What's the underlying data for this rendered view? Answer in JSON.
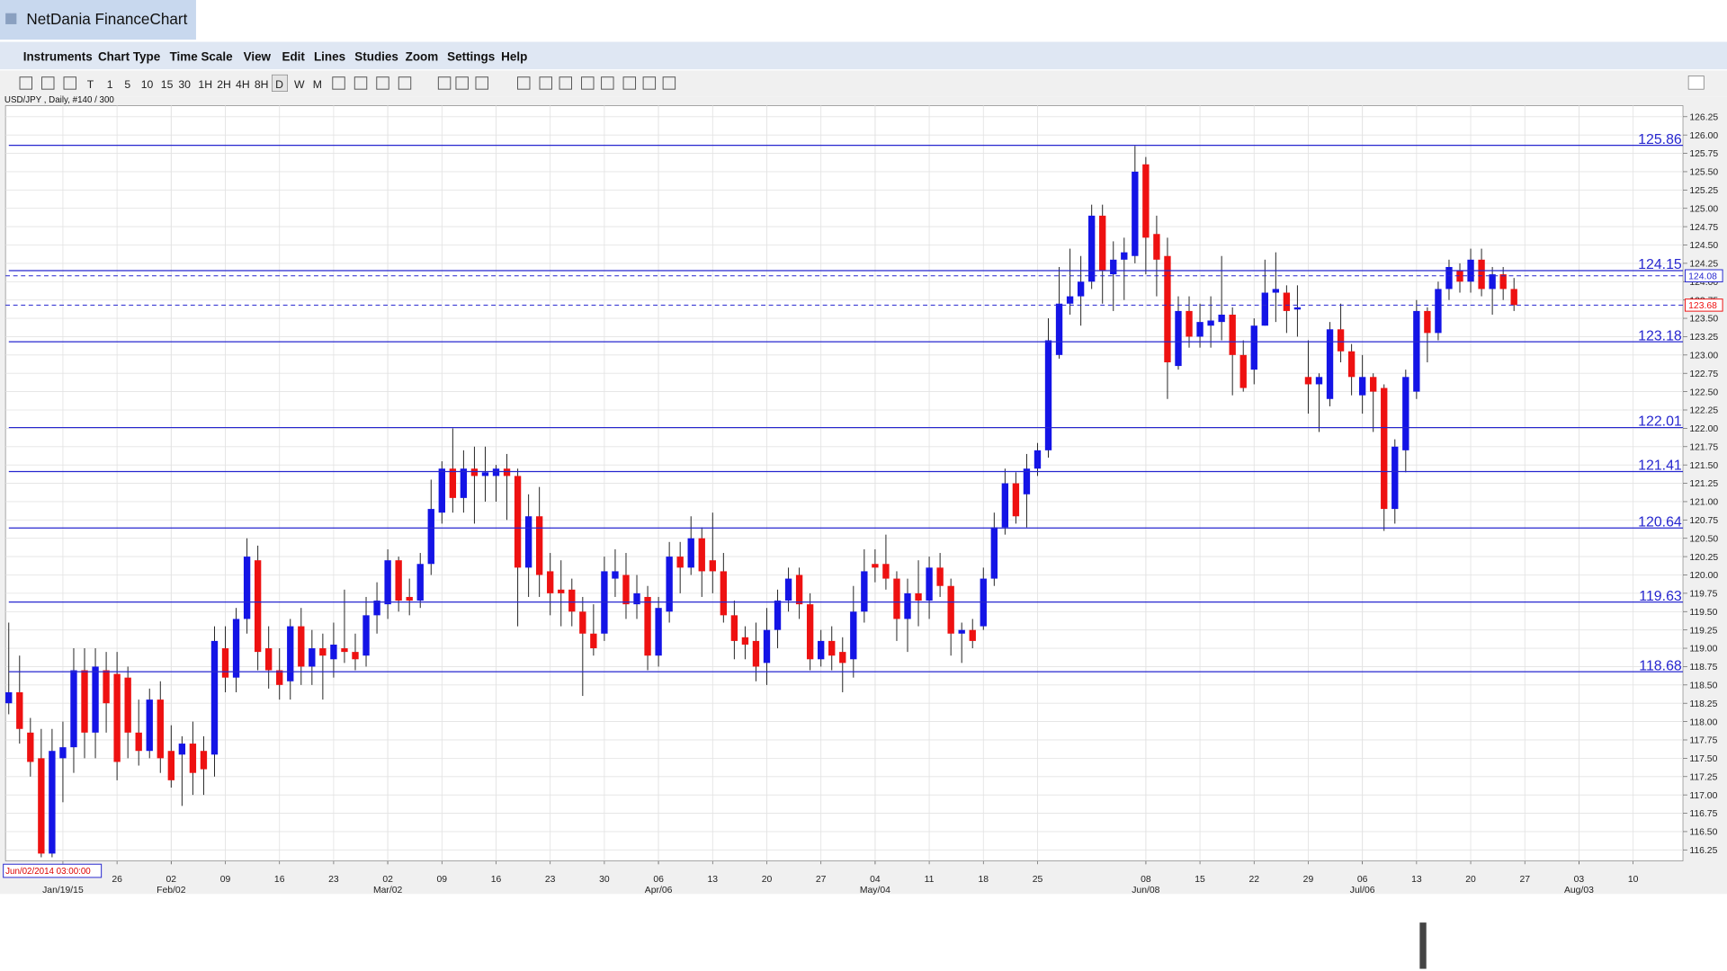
{
  "window": {
    "title": "NetDania FinanceChart"
  },
  "menu": [
    "Instruments",
    "Chart Type",
    "Time Scale",
    "View",
    "Edit",
    "Lines",
    "Studies",
    "Zoom",
    "Settings",
    "Help"
  ],
  "toolbar": [
    "T",
    "1",
    "5",
    "10",
    "15",
    "30",
    "1H",
    "2H",
    "4H",
    "8H",
    "D",
    "W",
    "M"
  ],
  "chart_data": {
    "type": "candlestick",
    "title": "USD/JPY , Daily, #140 / 300",
    "cursor_label": "Jun/02/2014 03:00:00",
    "up_color": "#1414e6",
    "down_color": "#ee1111",
    "open": [
      118.25,
      118.4,
      117.85,
      117.5,
      116.2,
      117.5,
      117.65,
      118.7,
      117.85,
      118.7,
      118.65,
      118.6,
      117.85,
      117.6,
      118.3,
      117.6,
      117.55,
      117.7,
      117.6,
      117.55,
      119.0,
      118.6,
      119.4,
      120.2,
      119.0,
      118.7,
      118.55,
      119.3,
      118.75,
      119.0,
      118.85,
      119.0,
      118.95,
      118.9,
      119.45,
      119.6,
      120.2,
      119.7,
      119.65,
      120.15,
      120.85,
      121.45,
      121.05,
      121.45,
      121.35,
      121.35,
      121.45,
      121.35,
      120.1,
      120.8,
      120.05,
      119.8,
      119.8,
      119.5,
      119.2,
      119.2,
      119.95,
      120.0,
      119.6,
      119.7,
      118.9,
      119.5,
      120.25,
      120.1,
      120.5,
      120.2,
      120.05,
      119.45,
      119.15,
      119.1,
      118.8,
      119.25,
      119.65,
      120.0,
      119.6,
      118.85,
      119.1,
      118.95,
      118.85,
      119.5,
      120.15,
      120.15,
      119.95,
      119.4,
      119.75,
      119.65,
      120.1,
      119.85,
      119.2,
      119.25,
      119.3,
      119.95,
      120.65,
      121.25,
      121.1,
      121.45,
      121.7,
      123.0,
      123.7,
      123.8,
      124.0,
      124.9,
      124.1,
      124.3,
      124.35,
      125.6,
      124.65,
      124.35,
      122.85,
      123.6,
      123.25,
      123.4,
      123.45,
      123.55,
      123.0,
      122.8,
      123.4,
      123.85,
      123.85,
      123.62,
      122.7,
      122.6,
      122.4,
      123.35,
      123.05,
      122.45,
      122.7,
      122.55,
      120.9,
      121.7,
      122.5,
      123.6,
      123.3,
      123.9,
      124.15,
      124.0,
      124.3,
      123.9,
      124.1,
      123.9
    ],
    "high": [
      119.35,
      118.9,
      118.05,
      117.9,
      117.9,
      118.0,
      119.0,
      119.0,
      119.0,
      118.95,
      118.95,
      118.75,
      118.3,
      118.45,
      118.55,
      117.95,
      117.8,
      118.0,
      117.8,
      119.3,
      119.3,
      119.55,
      120.5,
      120.4,
      119.3,
      119.0,
      119.4,
      119.55,
      119.25,
      119.2,
      119.35,
      119.8,
      119.2,
      119.7,
      119.9,
      120.35,
      120.25,
      119.95,
      120.3,
      121.3,
      121.55,
      122.0,
      121.7,
      121.75,
      121.75,
      121.5,
      121.65,
      121.45,
      121.1,
      121.2,
      120.3,
      120.2,
      119.95,
      119.7,
      119.6,
      120.25,
      120.35,
      120.3,
      120.0,
      119.85,
      119.7,
      120.45,
      120.45,
      120.8,
      120.65,
      120.85,
      120.3,
      119.65,
      119.3,
      119.35,
      119.55,
      119.8,
      120.1,
      120.1,
      119.75,
      119.25,
      119.3,
      119.15,
      119.85,
      120.35,
      120.35,
      120.55,
      120.05,
      119.95,
      120.2,
      120.25,
      120.3,
      119.95,
      119.35,
      119.4,
      120.1,
      120.85,
      121.45,
      121.4,
      121.65,
      121.8,
      123.5,
      124.2,
      124.45,
      124.35,
      125.05,
      125.05,
      124.55,
      124.6,
      125.85,
      125.7,
      124.9,
      124.6,
      123.8,
      123.8,
      123.7,
      123.8,
      124.35,
      123.65,
      123.2,
      123.5,
      124.3,
      124.4,
      123.95,
      123.95,
      123.2,
      122.75,
      123.45,
      123.7,
      123.15,
      123.0,
      122.75,
      122.6,
      121.85,
      122.8,
      123.75,
      123.65,
      124.0,
      124.3,
      124.25,
      124.45,
      124.45,
      124.2,
      124.2,
      124.05
    ],
    "low": [
      118.1,
      117.7,
      117.25,
      116.15,
      116.15,
      116.9,
      117.3,
      117.5,
      117.5,
      117.85,
      117.2,
      117.5,
      117.4,
      117.5,
      117.3,
      117.1,
      116.85,
      117.0,
      117.0,
      117.25,
      118.4,
      118.4,
      119.2,
      118.7,
      118.45,
      118.3,
      118.3,
      118.5,
      118.5,
      118.3,
      118.6,
      118.8,
      118.7,
      118.75,
      119.2,
      119.4,
      119.5,
      119.45,
      119.55,
      120.0,
      120.7,
      120.85,
      120.85,
      120.7,
      121.0,
      121.0,
      120.75,
      119.3,
      119.7,
      119.7,
      119.45,
      119.3,
      119.3,
      118.35,
      118.9,
      119.1,
      119.7,
      119.4,
      119.4,
      118.7,
      118.75,
      119.35,
      119.75,
      120.0,
      119.7,
      119.75,
      119.35,
      118.85,
      118.85,
      118.55,
      118.5,
      119.0,
      119.5,
      119.4,
      118.7,
      118.75,
      118.7,
      118.4,
      118.6,
      119.35,
      119.9,
      119.8,
      119.1,
      118.95,
      119.3,
      119.4,
      119.7,
      118.9,
      118.8,
      119.0,
      119.25,
      119.85,
      120.55,
      120.7,
      120.65,
      121.35,
      121.6,
      122.95,
      123.55,
      123.4,
      123.9,
      123.7,
      123.6,
      123.75,
      124.25,
      124.1,
      123.8,
      122.4,
      122.8,
      123.1,
      123.1,
      123.1,
      123.2,
      122.45,
      122.5,
      122.6,
      123.4,
      123.45,
      123.3,
      123.25,
      122.2,
      121.95,
      122.3,
      122.9,
      122.45,
      122.2,
      121.95,
      120.6,
      120.7,
      121.4,
      122.4,
      122.9,
      123.2,
      123.75,
      123.85,
      123.85,
      123.8,
      123.55,
      123.75,
      123.6
    ],
    "close": [
      118.4,
      117.9,
      117.45,
      116.2,
      117.6,
      117.65,
      118.7,
      117.85,
      118.75,
      118.25,
      117.45,
      117.85,
      117.6,
      118.3,
      117.5,
      117.2,
      117.7,
      117.3,
      117.35,
      119.1,
      118.6,
      119.4,
      120.25,
      118.95,
      118.7,
      118.5,
      119.3,
      118.75,
      119.0,
      118.9,
      119.05,
      118.95,
      118.85,
      119.45,
      119.65,
      120.2,
      119.65,
      119.65,
      120.15,
      120.9,
      121.45,
      121.05,
      121.45,
      121.35,
      121.4,
      121.45,
      121.35,
      120.1,
      120.8,
      120.0,
      119.75,
      119.75,
      119.5,
      119.2,
      119.0,
      120.05,
      120.05,
      119.6,
      119.75,
      118.9,
      119.55,
      120.25,
      120.1,
      120.5,
      120.05,
      120.05,
      119.45,
      119.1,
      119.05,
      118.75,
      119.25,
      119.65,
      119.95,
      119.6,
      118.85,
      119.1,
      118.9,
      118.8,
      119.5,
      120.05,
      120.1,
      119.95,
      119.4,
      119.75,
      119.65,
      120.1,
      119.85,
      119.2,
      119.25,
      119.1,
      119.95,
      120.65,
      121.25,
      120.8,
      121.45,
      121.7,
      123.2,
      123.7,
      123.8,
      124.0,
      124.9,
      124.15,
      124.3,
      124.4,
      125.5,
      124.6,
      124.3,
      122.9,
      123.6,
      123.25,
      123.45,
      123.47,
      123.55,
      123.0,
      122.55,
      123.4,
      123.85,
      123.9,
      123.6,
      123.65,
      122.6,
      122.7,
      123.35,
      123.05,
      122.7,
      122.7,
      122.5,
      120.9,
      121.75,
      122.7,
      123.6,
      123.3,
      123.9,
      124.2,
      124.0,
      124.3,
      123.9,
      124.1,
      123.9,
      123.68
    ],
    "xlim": [
      -0.3,
      154.6
    ],
    "xticks": [
      {
        "value": 10,
        "label": "26"
      },
      {
        "value": 15,
        "label": "02"
      },
      {
        "value": 20,
        "label": "09"
      },
      {
        "value": 25,
        "label": "16"
      },
      {
        "value": 30,
        "label": "23"
      },
      {
        "value": 35,
        "label": "02"
      },
      {
        "value": 40,
        "label": "09"
      },
      {
        "value": 45,
        "label": "16"
      },
      {
        "value": 50,
        "label": "23"
      },
      {
        "value": 55,
        "label": "30"
      },
      {
        "value": 60,
        "label": "06"
      },
      {
        "value": 65,
        "label": "13"
      },
      {
        "value": 70,
        "label": "20"
      },
      {
        "value": 75,
        "label": "27"
      },
      {
        "value": 80,
        "label": "04"
      },
      {
        "value": 85,
        "label": "11"
      },
      {
        "value": 90,
        "label": "18"
      },
      {
        "value": 95,
        "label": "25"
      },
      {
        "value": 105,
        "label": "08"
      },
      {
        "value": 110,
        "label": "15"
      },
      {
        "value": 115,
        "label": "22"
      },
      {
        "value": 120,
        "label": "29"
      },
      {
        "value": 125,
        "label": "06"
      },
      {
        "value": 130,
        "label": "13"
      },
      {
        "value": 135,
        "label": "20"
      },
      {
        "value": 140,
        "label": "27"
      },
      {
        "value": 145,
        "label": "03"
      },
      {
        "value": 150,
        "label": "10"
      }
    ],
    "xticks_major": [
      {
        "value": 5,
        "label": "Jan/19/15"
      },
      {
        "value": 15,
        "label": "Feb/02"
      },
      {
        "value": 35,
        "label": "Mar/02"
      },
      {
        "value": 60,
        "label": "Apr/06"
      },
      {
        "value": 80,
        "label": "May/04"
      },
      {
        "value": 105,
        "label": "Jun/08"
      },
      {
        "value": 125,
        "label": "Jul/06"
      },
      {
        "value": 145,
        "label": "Aug/03"
      }
    ],
    "ylim": [
      116.1,
      126.4
    ],
    "yticks": [
      116.25,
      {
        "value": 116.5,
        "label": "116.50"
      },
      116.75,
      {
        "value": 117,
        "label": "117.00"
      },
      117.25,
      {
        "value": 117.5,
        "label": "117.50"
      },
      117.75,
      {
        "value": 118,
        "label": "118.00"
      },
      118.25,
      {
        "value": 118.5,
        "label": "118.50"
      },
      118.75,
      {
        "value": 119,
        "label": "119.00"
      },
      119.25,
      {
        "value": 119.5,
        "label": "119.50"
      },
      119.75,
      {
        "value": 120,
        "label": "120.00"
      },
      120.25,
      {
        "value": 120.5,
        "label": "120.50"
      },
      120.75,
      {
        "value": 121,
        "label": "121.00"
      },
      121.25,
      {
        "value": 121.5,
        "label": "121.50"
      },
      121.75,
      {
        "value": 122,
        "label": "122.00"
      },
      122.25,
      {
        "value": 122.5,
        "label": "122.50"
      },
      122.75,
      {
        "value": 123,
        "label": "123.00"
      },
      123.25,
      {
        "value": 123.5,
        "label": "123.50"
      },
      123.75,
      {
        "value": 124,
        "label": "124.00"
      },
      124.25,
      {
        "value": 124.5,
        "label": "124.50"
      },
      124.75,
      {
        "value": 125,
        "label": "125.00"
      },
      125.25,
      {
        "value": 125.5,
        "label": "125.50"
      },
      125.75,
      {
        "value": 126,
        "label": "126.00"
      },
      126.25
    ],
    "grid": true,
    "levels": [
      125.86,
      124.15,
      123.18,
      122.01,
      121.41,
      120.64,
      119.63,
      118.68
    ],
    "level_color": "#2626cf",
    "price_markers": [
      {
        "value": 124.08,
        "color": "#2626cf"
      },
      {
        "value": 123.68,
        "color": "#ee1111"
      }
    ]
  }
}
